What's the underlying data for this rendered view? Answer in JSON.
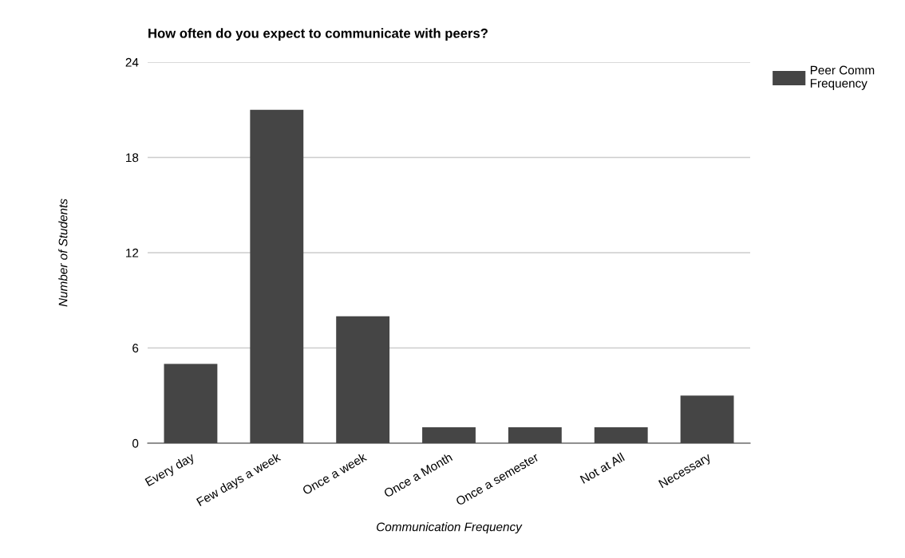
{
  "chart_data": {
    "type": "bar",
    "title": "How often do you expect to communicate with peers?",
    "xlabel": "Communication Frequency",
    "ylabel": "Number of Students",
    "categories": [
      "Every day",
      "Few days a week",
      "Once a week",
      "Once a Month",
      "Once a semester",
      "Not at All",
      "Necessary"
    ],
    "series": [
      {
        "name": "Peer Comm Frequency",
        "color": "#454545",
        "values": [
          5,
          21,
          8,
          1,
          1,
          1,
          3
        ]
      }
    ],
    "ylim": [
      0,
      24
    ],
    "yticks": [
      0,
      6,
      12,
      18,
      24
    ],
    "grid": "y",
    "legend": "top right"
  }
}
